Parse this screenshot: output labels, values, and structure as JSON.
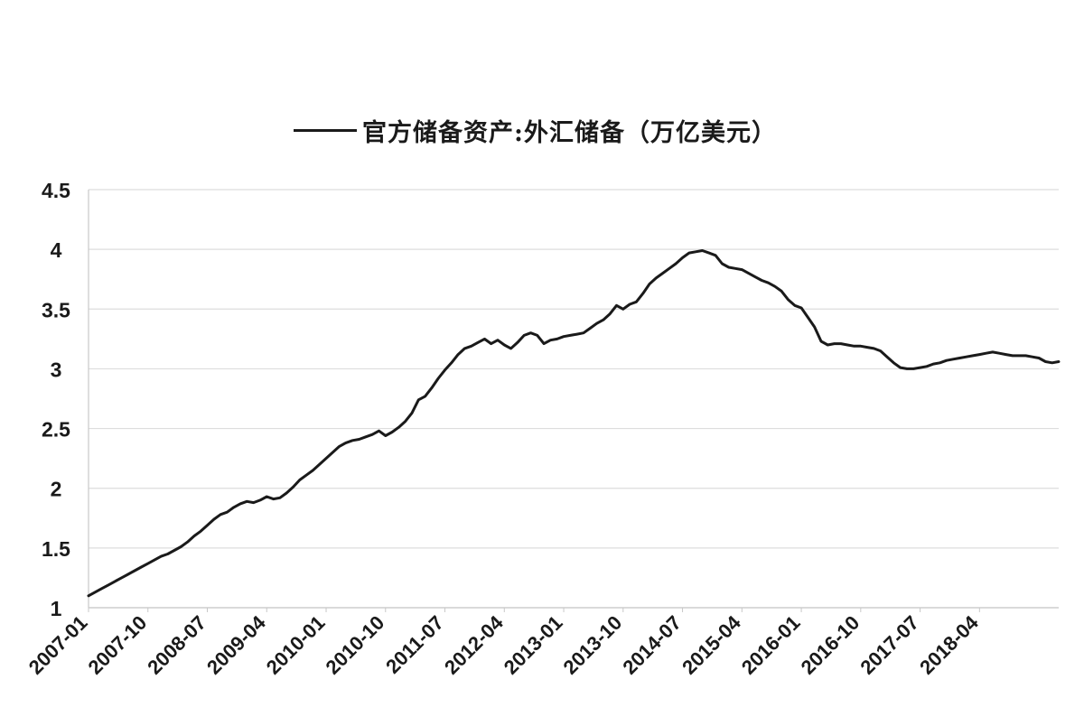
{
  "chart_data": {
    "type": "line",
    "title": "",
    "xlabel": "",
    "ylabel": "",
    "ylim": [
      1,
      4.5
    ],
    "yticks": [
      "1",
      "1.5",
      "2",
      "2.5",
      "3",
      "3.5",
      "4",
      "4.5"
    ],
    "xtick_labels": [
      "2007-01",
      "2007-10",
      "2008-07",
      "2009-04",
      "2010-01",
      "2010-10",
      "2011-07",
      "2012-04",
      "2013-01",
      "2013-10",
      "2014-07",
      "2015-04",
      "2016-01",
      "2016-10",
      "2017-07",
      "2018-04"
    ],
    "grid": true,
    "legend_position": "top",
    "line_color": "#1a1a1a",
    "series": [
      {
        "name": "官方储备资产:外汇储备（万亿美元）",
        "start": "2007-01",
        "frequency": "monthly",
        "values": [
          1.1,
          1.13,
          1.16,
          1.19,
          1.22,
          1.25,
          1.28,
          1.31,
          1.34,
          1.37,
          1.4,
          1.43,
          1.45,
          1.48,
          1.51,
          1.55,
          1.6,
          1.64,
          1.69,
          1.74,
          1.78,
          1.8,
          1.84,
          1.87,
          1.89,
          1.88,
          1.9,
          1.93,
          1.91,
          1.92,
          1.96,
          2.01,
          2.07,
          2.11,
          2.15,
          2.2,
          2.25,
          2.3,
          2.35,
          2.38,
          2.4,
          2.41,
          2.43,
          2.45,
          2.48,
          2.44,
          2.47,
          2.51,
          2.56,
          2.63,
          2.74,
          2.77,
          2.84,
          2.92,
          2.99,
          3.05,
          3.12,
          3.17,
          3.19,
          3.22,
          3.25,
          3.21,
          3.24,
          3.2,
          3.17,
          3.22,
          3.28,
          3.3,
          3.28,
          3.21,
          3.24,
          3.25,
          3.27,
          3.28,
          3.29,
          3.3,
          3.34,
          3.38,
          3.41,
          3.46,
          3.53,
          3.5,
          3.54,
          3.56,
          3.63,
          3.71,
          3.76,
          3.8,
          3.84,
          3.88,
          3.93,
          3.97,
          3.98,
          3.99,
          3.97,
          3.95,
          3.88,
          3.85,
          3.84,
          3.83,
          3.8,
          3.77,
          3.74,
          3.72,
          3.69,
          3.65,
          3.58,
          3.53,
          3.51,
          3.43,
          3.35,
          3.23,
          3.2,
          3.21,
          3.21,
          3.2,
          3.19,
          3.19,
          3.18,
          3.17,
          3.15,
          3.1,
          3.05,
          3.01,
          3.0,
          3.0,
          3.01,
          3.02,
          3.04,
          3.05,
          3.07,
          3.08,
          3.09,
          3.1,
          3.11,
          3.12,
          3.13,
          3.14,
          3.13,
          3.12,
          3.11,
          3.11,
          3.11,
          3.1,
          3.09,
          3.06,
          3.05,
          3.06
        ]
      }
    ]
  }
}
